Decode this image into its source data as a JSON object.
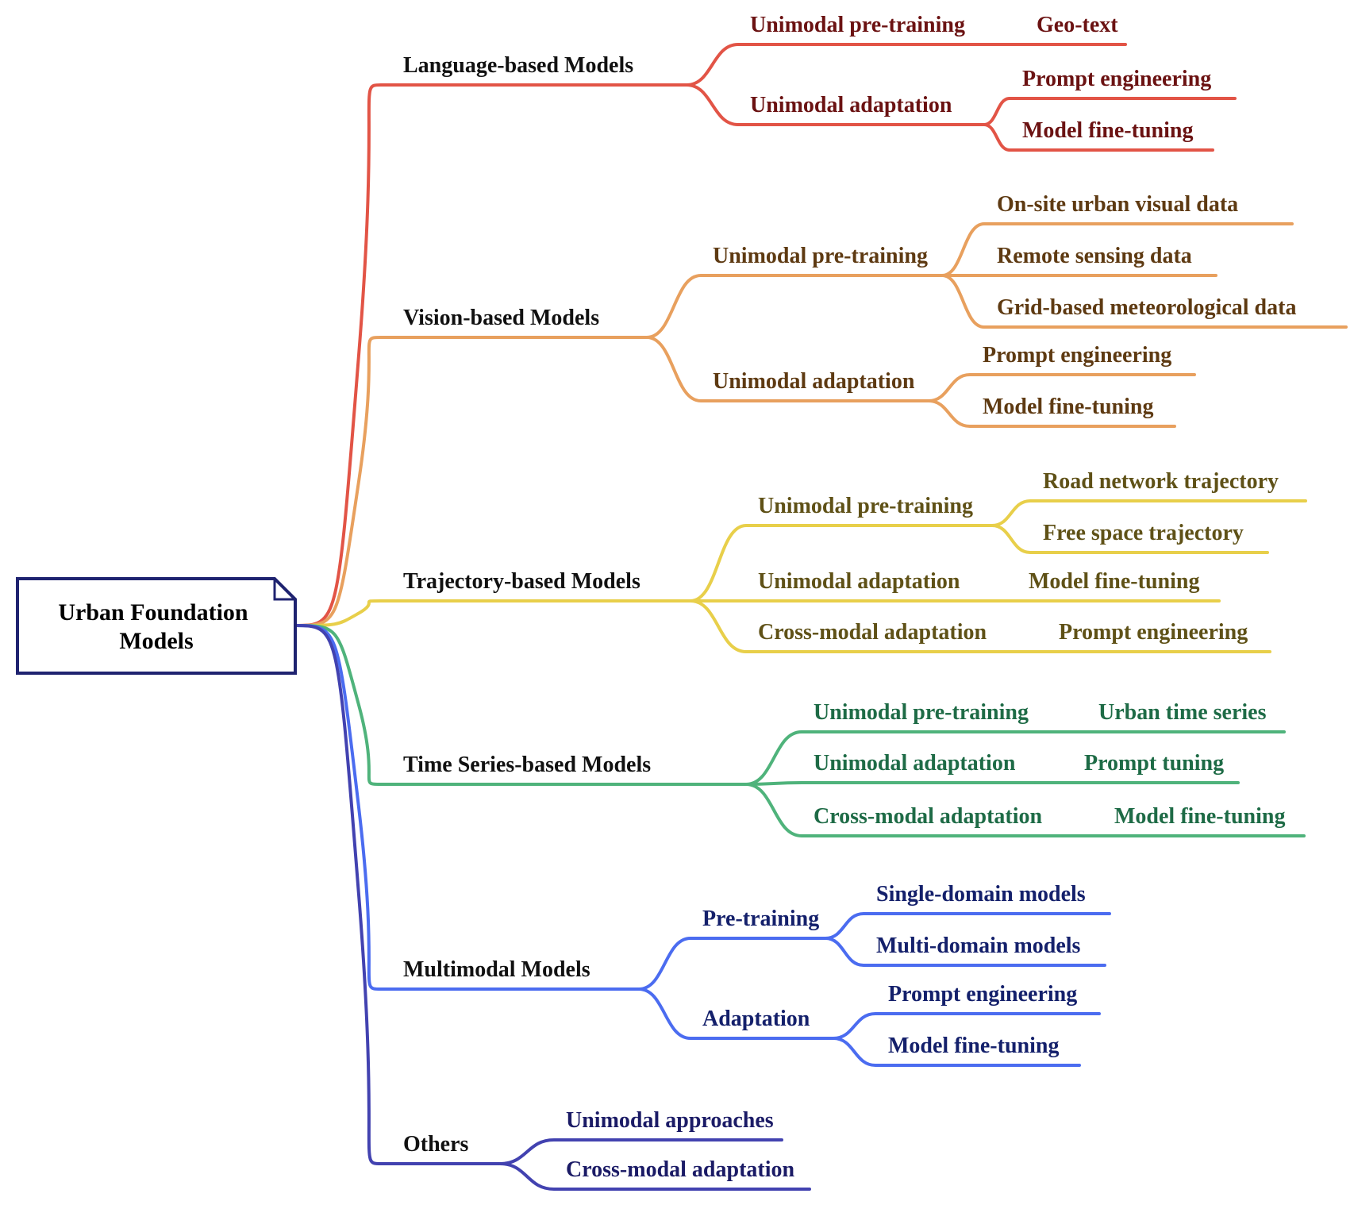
{
  "root": {
    "line1": "Urban Foundation",
    "line2": "Models",
    "border": "#1f2370"
  },
  "branches": [
    {
      "label": "Language-based Models",
      "color": "#e25446",
      "text_color": "#6b1212",
      "children": [
        {
          "label": "Unimodal pre-training",
          "children": [
            "Geo-text"
          ]
        },
        {
          "label": "Unimodal adaptation",
          "children": [
            "Prompt engineering",
            "Model fine-tuning"
          ]
        }
      ]
    },
    {
      "label": "Vision-based Models",
      "color": "#e8a05e",
      "text_color": "#5e3a12",
      "children": [
        {
          "label": "Unimodal pre-training",
          "children": [
            "On-site urban visual data",
            "Remote sensing data",
            "Grid-based meteorological data"
          ]
        },
        {
          "label": "Unimodal adaptation",
          "children": [
            "Prompt engineering",
            "Model fine-tuning"
          ]
        }
      ]
    },
    {
      "label": "Trajectory-based Models",
      "color": "#e8cf4a",
      "text_color": "#5f5117",
      "children": [
        {
          "label": "Unimodal pre-training",
          "children": [
            "Road network trajectory",
            "Free space trajectory"
          ]
        },
        {
          "label": "Unimodal adaptation",
          "children": [
            "Model fine-tuning"
          ]
        },
        {
          "label": "Cross-modal adaptation",
          "children": [
            "Prompt engineering"
          ]
        }
      ]
    },
    {
      "label": "Time Series-based Models",
      "color": "#4fb37b",
      "text_color": "#1e6b46",
      "children": [
        {
          "label": "Unimodal pre-training",
          "children": [
            "Urban time series"
          ]
        },
        {
          "label": "Unimodal adaptation",
          "children": [
            "Prompt tuning"
          ]
        },
        {
          "label": "Cross-modal adaptation",
          "children": [
            "Model fine-tuning"
          ]
        }
      ]
    },
    {
      "label": "Multimodal Models",
      "color": "#4b6cf0",
      "text_color": "#14206b",
      "children": [
        {
          "label": "Pre-training",
          "children": [
            "Single-domain models",
            "Multi-domain models"
          ]
        },
        {
          "label": "Adaptation",
          "children": [
            "Prompt engineering",
            "Model fine-tuning"
          ]
        }
      ]
    },
    {
      "label": "Others",
      "color": "#4242b0",
      "text_color": "#1b1b66",
      "children": [
        {
          "label": "Unimodal approaches",
          "children": []
        },
        {
          "label": "Cross-modal adaptation",
          "children": []
        }
      ]
    }
  ]
}
